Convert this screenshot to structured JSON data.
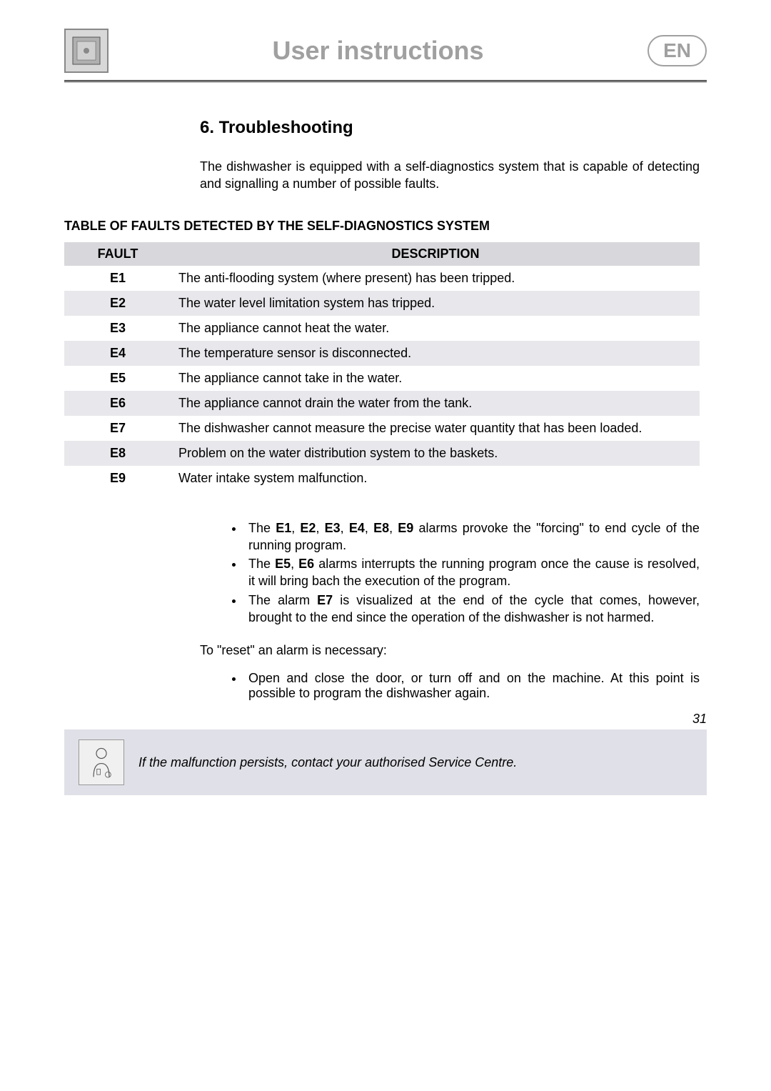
{
  "header": {
    "title": "User instructions",
    "lang": "EN",
    "title_color": "#a0a0a0",
    "lang_border_color": "#a0a0a0"
  },
  "section": {
    "heading": "6.  Troubleshooting",
    "intro": "The dishwasher is equipped with a self-diagnostics system that is capable of detecting and signalling a number of possible faults."
  },
  "table": {
    "title": "TABLE OF FAULTS DETECTED BY THE SELF-DIAGNOSTICS SYSTEM",
    "columns": [
      "FAULT",
      "DESCRIPTION"
    ],
    "header_bg": "#d8d8dc",
    "row_alt_bg": "#e8e8ec",
    "rows": [
      {
        "fault": "E1",
        "desc": "The anti-flooding system (where present) has been tripped."
      },
      {
        "fault": "E2",
        "desc": "The water level limitation system has tripped."
      },
      {
        "fault": "E3",
        "desc": "The appliance cannot heat the water."
      },
      {
        "fault": "E4",
        "desc": "The temperature sensor is disconnected."
      },
      {
        "fault": "E5",
        "desc": "The appliance cannot take in the water."
      },
      {
        "fault": "E6",
        "desc": "The appliance cannot drain the water from the tank."
      },
      {
        "fault": "E7",
        "desc": "The dishwasher cannot measure the precise water quantity that has been loaded."
      },
      {
        "fault": "E8",
        "desc": "Problem on the water distribution system to the baskets."
      },
      {
        "fault": "E9",
        "desc": "Water intake system malfunction."
      }
    ]
  },
  "notes": {
    "bullets": [
      {
        "bold_prefix": "E1, E2, E3, E4, E8, E9",
        "pre": "The ",
        "post": " alarms provoke the \"forcing\" to end cycle of the running program."
      },
      {
        "bold_prefix": "E5, E6",
        "pre": "The ",
        "post": " alarms interrupts the running program once the cause is resolved, it will bring bach the execution of the program."
      },
      {
        "bold_prefix": "E7",
        "pre": "The alarm ",
        "post": " is visualized at the end of the cycle that comes, however, brought to the end since the operation of the dishwasher is not harmed."
      }
    ],
    "reset_line": "To \"reset\" an alarm is necessary:",
    "reset_bullet": "Open and close the door, or turn off and on the machine. At this point is possible to program the dishwasher again."
  },
  "warning": {
    "text": "If the malfunction persists, contact your authorised Service Centre.",
    "bg": "#e0e0e8"
  },
  "page_number": "31",
  "fontsize": {
    "heading": 24,
    "body": 18,
    "header_title": 36
  }
}
